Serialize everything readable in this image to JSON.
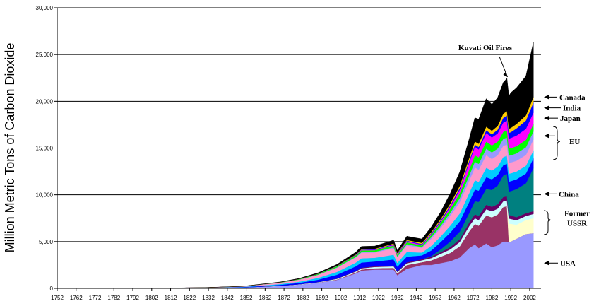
{
  "chart_data": {
    "type": "area",
    "title": "",
    "xlabel": "",
    "ylabel": "Million Metric Tons of Carbon Dioxide",
    "xlim": [
      1752,
      2008
    ],
    "ylim": [
      0,
      30000
    ],
    "grid": "horizontal",
    "stacked": true,
    "x_ticks": [
      "1752",
      "1762",
      "1772",
      "1782",
      "1792",
      "1802",
      "1812",
      "1822",
      "1832",
      "1842",
      "1852",
      "1862",
      "1872",
      "1882",
      "1892",
      "1902",
      "1912",
      "1922",
      "1932",
      "1942",
      "1952",
      "1962",
      "1972",
      "1982",
      "1992",
      "2002"
    ],
    "y_ticks": [
      "0",
      "5,000",
      "10,000",
      "15,000",
      "20,000",
      "25,000",
      "30,000"
    ],
    "x": [
      1752,
      1800,
      1830,
      1850,
      1870,
      1880,
      1890,
      1900,
      1910,
      1913,
      1920,
      1930,
      1932,
      1937,
      1945,
      1950,
      1955,
      1960,
      1965,
      1970,
      1973,
      1975,
      1979,
      1982,
      1985,
      1988,
      1990,
      1991,
      1992,
      1995,
      2000,
      2004
    ],
    "series": [
      {
        "name": "USA",
        "color": "#9999ff",
        "values": [
          0,
          5,
          40,
          100,
          250,
          400,
          600,
          900,
          1600,
          1900,
          2000,
          2000,
          1400,
          2100,
          2500,
          2500,
          2700,
          2900,
          3300,
          4300,
          4700,
          4300,
          4800,
          4400,
          4600,
          5000,
          5000,
          4900,
          5000,
          5300,
          5800,
          5900
        ]
      },
      {
        "name": "",
        "color": "#993366",
        "values": [
          0,
          0,
          0,
          0,
          10,
          10,
          20,
          50,
          100,
          120,
          150,
          200,
          200,
          400,
          300,
          500,
          700,
          900,
          1200,
          1800,
          2200,
          2400,
          3000,
          3200,
          3300,
          3700,
          3800,
          0,
          0,
          0,
          0,
          0
        ]
      },
      {
        "name": "Former USSR",
        "color": "#ffffcc",
        "values": [
          0,
          0,
          0,
          0,
          0,
          0,
          0,
          0,
          0,
          0,
          0,
          0,
          0,
          0,
          0,
          0,
          0,
          0,
          0,
          0,
          0,
          0,
          0,
          0,
          0,
          0,
          0,
          2000,
          1900,
          1500,
          1500,
          1600
        ]
      },
      {
        "name": "",
        "color": "#ccffff",
        "values": [
          0,
          0,
          0,
          0,
          10,
          20,
          30,
          60,
          100,
          120,
          140,
          150,
          140,
          180,
          200,
          240,
          300,
          380,
          460,
          560,
          600,
          600,
          660,
          640,
          620,
          600,
          600,
          560,
          520,
          480,
          440,
          460
        ]
      },
      {
        "name": "",
        "color": "#660066",
        "values": [
          0,
          0,
          0,
          0,
          10,
          10,
          20,
          40,
          60,
          70,
          80,
          90,
          80,
          110,
          120,
          140,
          180,
          240,
          300,
          380,
          420,
          440,
          480,
          480,
          470,
          460,
          450,
          400,
          380,
          330,
          290,
          300
        ]
      },
      {
        "name": "China",
        "color": "#008080",
        "values": [
          0,
          0,
          0,
          0,
          0,
          0,
          0,
          0,
          0,
          0,
          0,
          0,
          0,
          0,
          0,
          80,
          300,
          600,
          800,
          1000,
          1400,
          1500,
          1700,
          1800,
          2000,
          2300,
          2400,
          2500,
          2600,
          3000,
          3200,
          4600
        ]
      },
      {
        "name": "",
        "color": "#0000ff",
        "values": [
          0,
          2,
          10,
          30,
          100,
          150,
          250,
          400,
          500,
          550,
          500,
          650,
          500,
          600,
          400,
          600,
          800,
          950,
          1100,
          1200,
          1250,
          1200,
          1250,
          1150,
          1120,
          1100,
          1080,
          1060,
          1060,
          1050,
          1050,
          1060
        ]
      },
      {
        "name": "",
        "color": "#00ccff",
        "values": [
          0,
          1,
          10,
          25,
          80,
          120,
          200,
          300,
          400,
          450,
          400,
          500,
          400,
          500,
          300,
          500,
          600,
          750,
          850,
          950,
          1000,
          950,
          1000,
          920,
          900,
          880,
          860,
          850,
          840,
          830,
          830,
          840
        ]
      },
      {
        "name": "EU",
        "color": "#ff99cc",
        "values": [
          0,
          2,
          20,
          50,
          150,
          220,
          320,
          450,
          550,
          600,
          550,
          700,
          600,
          700,
          500,
          750,
          900,
          1050,
          1200,
          1300,
          1350,
          1300,
          1350,
          1250,
          1220,
          1200,
          1180,
          1170,
          1160,
          1150,
          1150,
          1160
        ]
      },
      {
        "name": "",
        "color": "#9999ff",
        "values": [
          0,
          0,
          0,
          0,
          5,
          10,
          20,
          40,
          60,
          70,
          80,
          100,
          90,
          130,
          100,
          170,
          230,
          320,
          430,
          560,
          620,
          620,
          700,
          700,
          720,
          740,
          760,
          760,
          770,
          790,
          820,
          860
        ]
      },
      {
        "name": "",
        "color": "#00ff00",
        "values": [
          0,
          1,
          5,
          10,
          30,
          50,
          80,
          120,
          160,
          180,
          170,
          200,
          170,
          210,
          160,
          250,
          330,
          420,
          520,
          640,
          700,
          700,
          760,
          740,
          740,
          750,
          760,
          760,
          760,
          770,
          790,
          810
        ]
      },
      {
        "name": "Japan",
        "color": "#ff00ff",
        "values": [
          0,
          0,
          0,
          0,
          0,
          2,
          5,
          10,
          30,
          40,
          50,
          70,
          70,
          100,
          80,
          90,
          130,
          230,
          380,
          750,
          900,
          850,
          900,
          850,
          870,
          1000,
          1050,
          1070,
          1080,
          1130,
          1180,
          1200
        ]
      },
      {
        "name": "India",
        "color": "#0000ff",
        "values": [
          0,
          0,
          0,
          0,
          2,
          5,
          10,
          20,
          30,
          40,
          50,
          60,
          60,
          70,
          80,
          90,
          120,
          150,
          180,
          200,
          230,
          260,
          300,
          340,
          400,
          500,
          560,
          600,
          630,
          760,
          900,
          1100
        ]
      },
      {
        "name": "Canada",
        "color": "#ffcc00",
        "values": [
          0,
          0,
          0,
          1,
          3,
          5,
          10,
          20,
          40,
          50,
          60,
          80,
          70,
          80,
          120,
          130,
          160,
          190,
          240,
          300,
          330,
          340,
          380,
          380,
          400,
          440,
          450,
          440,
          450,
          480,
          530,
          560
        ]
      },
      {
        "name": "",
        "color": "#000000",
        "values": [
          0,
          0,
          5,
          10,
          40,
          60,
          100,
          150,
          250,
          300,
          300,
          350,
          280,
          400,
          420,
          560,
          760,
          1100,
          1480,
          2040,
          2540,
          2630,
          3000,
          2830,
          3030,
          3350,
          3510,
          3500,
          3770,
          3870,
          4220,
          5900
        ]
      }
    ],
    "annotations": [
      {
        "text": "Kuvati Oil Fires",
        "x": 1991,
        "y": 22300
      },
      {
        "text": "Canada",
        "x": 2008,
        "y": 20450
      },
      {
        "text": "India",
        "x": 2008,
        "y": 19300
      },
      {
        "text": "Japan",
        "x": 2008,
        "y": 18200
      },
      {
        "text": "EU",
        "x": 2008,
        "y": 15700
      },
      {
        "text": "China",
        "x": 2008,
        "y": 10100
      },
      {
        "text": "Former USSR",
        "x": 2008,
        "y": 7300
      },
      {
        "text": "USA",
        "x": 2008,
        "y": 2700
      }
    ]
  }
}
